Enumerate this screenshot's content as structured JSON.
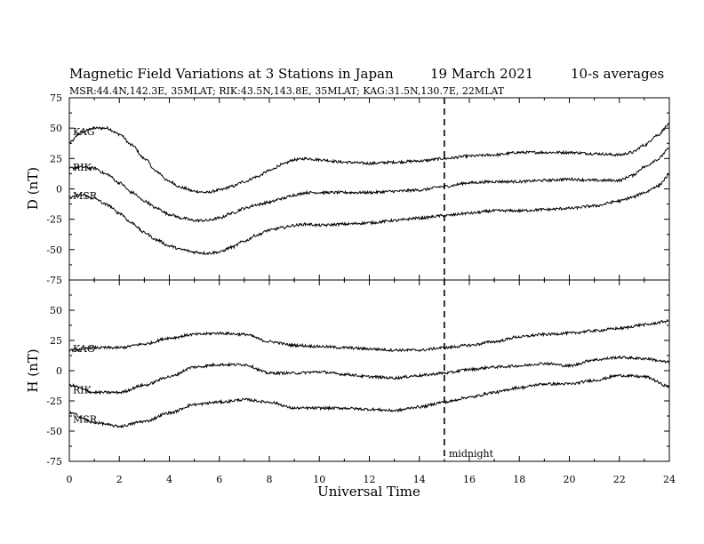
{
  "chart_data": {
    "type": "line",
    "title_left": "Magnetic Field Variations at 3 Stations in Japan",
    "title_date": "19 March   2021",
    "title_avg": "10-s averages",
    "subtitle": "MSR:44.4N,142.3E, 35MLAT;  RIK:43.5N,143.8E, 35MLAT;  KAG:31.5N,130.7E, 22MLAT",
    "xlabel": "Universal Time",
    "xlim": [
      0,
      24
    ],
    "xticks": [
      "0",
      "2",
      "4",
      "6",
      "8",
      "10",
      "12",
      "14",
      "16",
      "18",
      "20",
      "22",
      "24"
    ],
    "marker": {
      "x": 15,
      "label": "midnight"
    },
    "panels": [
      {
        "ylabel": "D (nT)",
        "ylim": [
          -75,
          75
        ],
        "yticks": [
          "75",
          "50",
          "25",
          "0",
          "-25",
          "-50",
          "-75"
        ],
        "series": [
          {
            "name": "KAG",
            "x": [
              0,
              0.5,
              1,
              1.5,
              2,
              2.5,
              3,
              3.5,
              4,
              4.5,
              5,
              5.5,
              6,
              6.5,
              7,
              7.5,
              8,
              8.5,
              9,
              9.5,
              10,
              11,
              12,
              13,
              14,
              15,
              16,
              17,
              18,
              19,
              20,
              21,
              22,
              22.5,
              23,
              23.5,
              24
            ],
            "y": [
              38,
              47,
              50,
              50,
              45,
              36,
              25,
              14,
              6,
              1,
              -2,
              -3,
              -1,
              2,
              6,
              10,
              15,
              20,
              24,
              25,
              24,
              22,
              21,
              22,
              23,
              25,
              27,
              28,
              30,
              30,
              30,
              29,
              28,
              30,
              36,
              44,
              53
            ]
          },
          {
            "name": "RIK",
            "x": [
              0,
              0.5,
              1,
              1.5,
              2,
              2.5,
              3,
              3.5,
              4,
              4.5,
              5,
              5.5,
              6,
              6.5,
              7,
              7.5,
              8,
              8.5,
              9,
              9.5,
              10,
              11,
              12,
              13,
              14,
              15,
              16,
              17,
              18,
              19,
              20,
              21,
              22,
              22.5,
              23,
              23.5,
              24
            ],
            "y": [
              17,
              18,
              17,
              12,
              5,
              -3,
              -10,
              -16,
              -21,
              -24,
              -26,
              -26,
              -24,
              -20,
              -16,
              -13,
              -11,
              -8,
              -5,
              -3,
              -3,
              -3,
              -3,
              -2,
              -1,
              2,
              5,
              6,
              6,
              7,
              8,
              7,
              7,
              11,
              18,
              24,
              33
            ]
          },
          {
            "name": "MSR",
            "x": [
              0,
              0.5,
              1,
              1.5,
              2,
              2.5,
              3,
              3.5,
              4,
              4.5,
              5,
              5.5,
              6,
              6.5,
              7,
              7.5,
              8,
              8.5,
              9,
              9.5,
              10,
              11,
              12,
              13,
              14,
              15,
              16,
              17,
              18,
              19,
              20,
              21,
              22,
              22.5,
              23,
              23.5,
              24
            ],
            "y": [
              -7,
              -5,
              -8,
              -13,
              -20,
              -28,
              -36,
              -42,
              -47,
              -50,
              -52,
              -53,
              -52,
              -48,
              -43,
              -38,
              -34,
              -32,
              -30,
              -29,
              -30,
              -29,
              -28,
              -26,
              -24,
              -22,
              -20,
              -18,
              -18,
              -17,
              -16,
              -14,
              -10,
              -7,
              -3,
              2,
              11
            ]
          }
        ]
      },
      {
        "ylabel": "H (nT)",
        "ylim": [
          -75,
          75
        ],
        "yticks": [
          "50",
          "25",
          "0",
          "-25",
          "-50",
          "-75"
        ],
        "series": [
          {
            "name": "KAG",
            "x": [
              0,
              1,
              2,
              3,
              4,
              5,
              6,
              7,
              8,
              9,
              10,
              11,
              12,
              13,
              14,
              15,
              16,
              17,
              18,
              19,
              20,
              21,
              22,
              23,
              24
            ],
            "y": [
              17,
              19,
              19,
              22,
              27,
              30,
              31,
              30,
              24,
              21,
              20,
              19,
              18,
              17,
              17,
              19,
              21,
              24,
              28,
              30,
              31,
              33,
              35,
              38,
              41
            ]
          },
          {
            "name": "RIK",
            "x": [
              0,
              1,
              2,
              3,
              4,
              5,
              6,
              7,
              8,
              9,
              10,
              11,
              12,
              13,
              14,
              15,
              16,
              17,
              18,
              19,
              20,
              21,
              22,
              23,
              24
            ],
            "y": [
              -12,
              -18,
              -18,
              -12,
              -5,
              3,
              5,
              5,
              -2,
              -2,
              -1,
              -3,
              -5,
              -6,
              -4,
              -2,
              1,
              3,
              4,
              6,
              4,
              9,
              11,
              10,
              7
            ]
          },
          {
            "name": "MSR",
            "x": [
              0,
              1,
              2,
              3,
              4,
              5,
              6,
              7,
              8,
              9,
              10,
              11,
              12,
              13,
              14,
              15,
              16,
              17,
              18,
              19,
              20,
              21,
              22,
              23,
              24
            ],
            "y": [
              -35,
              -43,
              -46,
              -42,
              -35,
              -28,
              -26,
              -24,
              -26,
              -31,
              -31,
              -31,
              -32,
              -33,
              -30,
              -26,
              -22,
              -18,
              -14,
              -11,
              -11,
              -8,
              -4,
              -5,
              -13
            ]
          }
        ]
      }
    ]
  }
}
